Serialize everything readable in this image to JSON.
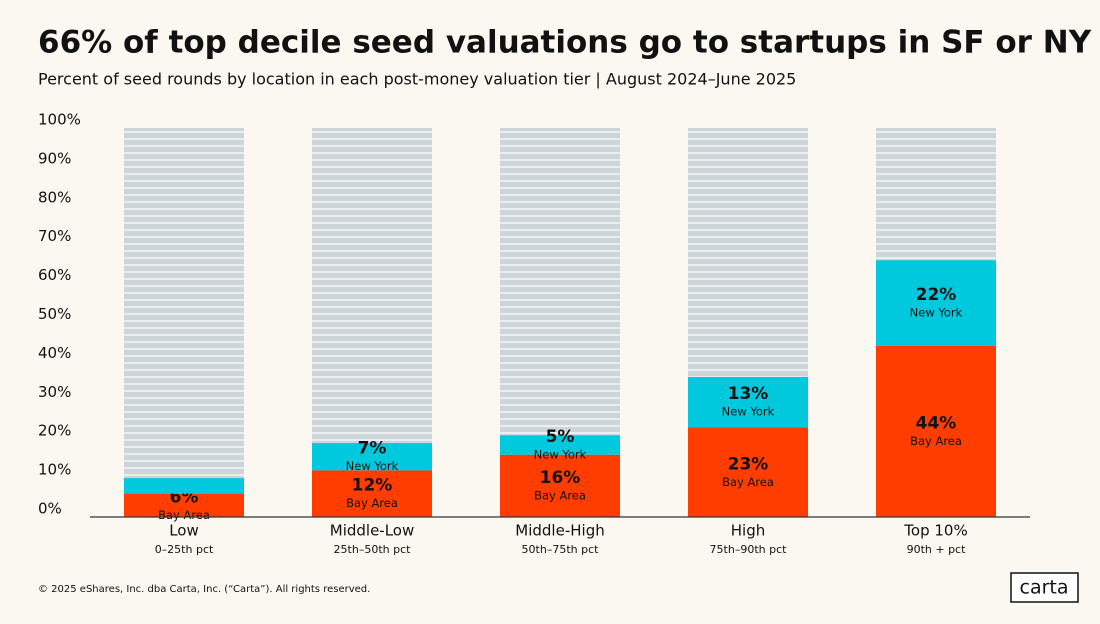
{
  "chart_data": {
    "type": "stacked_bar",
    "title": "66% of top decile seed valuations go to startups in SF or NY",
    "subtitle": "Percent of seed rounds by location in each post-money valuation tier | August 2024–June 2025",
    "categories": [
      "Low",
      "Middle-Low",
      "Middle-High",
      "High",
      "Top 10%"
    ],
    "subcategories": [
      "0–25th pct",
      "25th–50th pct",
      "50th–75th pct",
      "75th–90th pct",
      "90th + pct"
    ],
    "series": [
      {
        "name": "Bay Area",
        "color": "#ff3d00",
        "values": [
          6,
          12,
          16,
          23,
          44
        ],
        "value_labels": [
          "6%",
          "12%",
          "16%",
          "23%",
          "44%"
        ]
      },
      {
        "name": "New York",
        "color": "#00c9dd",
        "values": [
          4,
          7,
          5,
          13,
          22
        ],
        "value_labels": [
          null,
          "7%",
          "5%",
          "13%",
          "22%"
        ]
      }
    ],
    "ylim": [
      0,
      100
    ],
    "yticks": [
      {
        "value": 0,
        "label": "0%"
      },
      {
        "value": 10,
        "label": "10%"
      },
      {
        "value": 20,
        "label": "20%"
      },
      {
        "value": 30,
        "label": "30%"
      },
      {
        "value": 40,
        "label": "40%"
      },
      {
        "value": 50,
        "label": "50%"
      },
      {
        "value": 60,
        "label": "60%"
      },
      {
        "value": 70,
        "label": "70%"
      },
      {
        "value": 80,
        "label": "80%"
      },
      {
        "value": 90,
        "label": "90%"
      },
      {
        "value": 100,
        "label": "100%"
      }
    ],
    "grid": false
  },
  "footer": {
    "copyright": "© 2025 eShares, Inc. dba Carta, Inc. (“Carta”). All rights reserved.",
    "logo": "carta"
  }
}
